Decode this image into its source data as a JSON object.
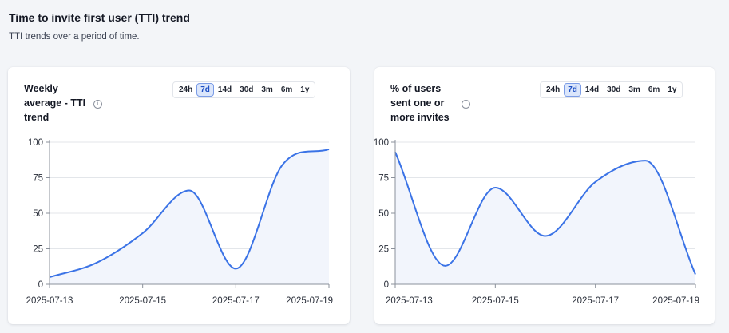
{
  "header": {
    "title": "Time to invite first user (TTI) trend",
    "subtitle": "TTI trends over a period of time."
  },
  "cards": [
    {
      "title": "Weekly average - TTI trend",
      "info_icon": "info-icon",
      "ranges": [
        "24h",
        "7d",
        "14d",
        "30d",
        "3m",
        "6m",
        "1y"
      ],
      "active_range": "7d"
    },
    {
      "title": "% of users sent one or more invites",
      "info_icon": "info-icon",
      "ranges": [
        "24h",
        "7d",
        "14d",
        "30d",
        "3m",
        "6m",
        "1y"
      ],
      "active_range": "7d"
    }
  ],
  "colors": {
    "line": "#3b73e6",
    "fill": "#f2f5fc",
    "grid": "#e3e6ea",
    "axis": "#8b919b"
  },
  "chart_data": [
    {
      "type": "area",
      "title": "Weekly average - TTI trend",
      "x": [
        "2025-07-13",
        "2025-07-14",
        "2025-07-15",
        "2025-07-16",
        "2025-07-17",
        "2025-07-18",
        "2025-07-19"
      ],
      "series": [
        {
          "values": [
            5,
            15,
            36,
            66,
            11,
            84,
            95
          ]
        }
      ],
      "x_tick_labels": [
        "2025-07-13",
        "2025-07-15",
        "2025-07-17",
        "2025-07-19"
      ],
      "y_ticks": [
        0,
        25,
        50,
        75,
        100
      ],
      "ylim": [
        0,
        100
      ],
      "grid": true
    },
    {
      "type": "area",
      "title": "% of users sent one or more invites",
      "x": [
        "2025-07-13",
        "2025-07-14",
        "2025-07-15",
        "2025-07-16",
        "2025-07-17",
        "2025-07-18",
        "2025-07-19"
      ],
      "series": [
        {
          "values": [
            93,
            13,
            68,
            34,
            72,
            87,
            7
          ]
        }
      ],
      "x_tick_labels": [
        "2025-07-13",
        "2025-07-15",
        "2025-07-17",
        "2025-07-19"
      ],
      "y_ticks": [
        0,
        25,
        50,
        75,
        100
      ],
      "ylim": [
        0,
        100
      ],
      "grid": true
    }
  ]
}
